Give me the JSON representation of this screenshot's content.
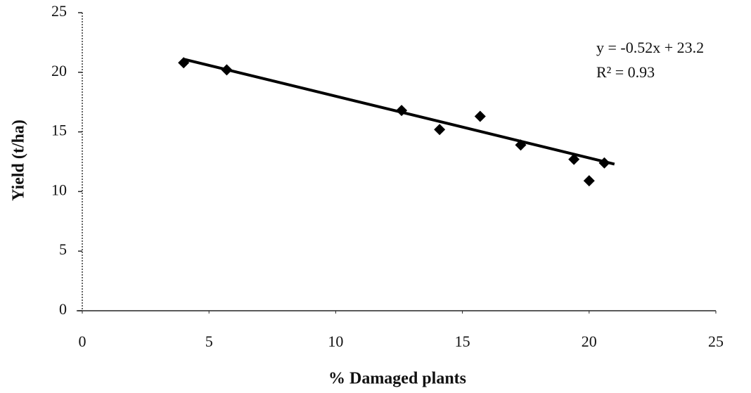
{
  "chart_data": {
    "type": "scatter",
    "xlabel": "% Damaged plants",
    "ylabel": "Yield (t/ha)",
    "x": [
      4.0,
      5.7,
      12.6,
      14.1,
      15.7,
      17.3,
      19.4,
      20.0,
      20.6
    ],
    "values": [
      20.8,
      20.2,
      16.8,
      15.2,
      16.3,
      13.9,
      12.7,
      10.9,
      12.4
    ],
    "color": "#000000",
    "trendline": {
      "x": [
        4.0,
        21.0
      ],
      "y": [
        21.1,
        12.3
      ]
    },
    "annotations": [
      "y = -0.52x + 23.2",
      "R² = 0.93"
    ],
    "xlim": [
      0,
      25
    ],
    "xticks": [
      0,
      5,
      10,
      15,
      20,
      25
    ],
    "ylim": [
      0,
      25
    ],
    "yticks": [
      0,
      5,
      10,
      15,
      20,
      25
    ]
  }
}
